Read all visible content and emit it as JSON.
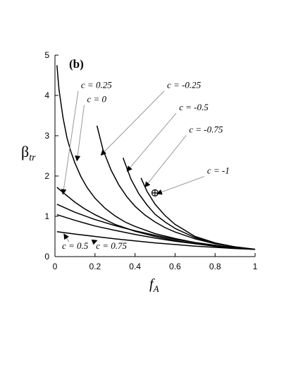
{
  "panel_label": "(b)",
  "chart_data": {
    "type": "line",
    "xlabel": "f",
    "xlabel_sub": "A",
    "ylabel": "β",
    "ylabel_sub": "tr",
    "xlim": [
      0,
      1
    ],
    "ylim": [
      0,
      5
    ],
    "xticks": [
      "0",
      "0.2",
      "0.4",
      "0.6",
      "0.8",
      "1"
    ],
    "yticks": [
      "0",
      "1",
      "2",
      "3",
      "4",
      "5"
    ],
    "grid": false,
    "series": [
      {
        "name": "c = -1",
        "x": [
          0.43,
          0.46,
          0.5,
          0.55,
          0.6,
          0.7,
          0.8,
          0.9,
          1.0
        ],
        "y": [
          1.95,
          1.62,
          1.3,
          1.02,
          0.8,
          0.5,
          0.34,
          0.24,
          0.18
        ]
      },
      {
        "name": "c = -0.75",
        "x": [
          0.34,
          0.38,
          0.42,
          0.46,
          0.5,
          0.55,
          0.6,
          0.7,
          0.8,
          0.9,
          1.0
        ],
        "y": [
          2.45,
          1.92,
          1.55,
          1.28,
          1.05,
          0.86,
          0.7,
          0.47,
          0.33,
          0.24,
          0.18
        ]
      },
      {
        "name": "c = -0.5",
        "x": [
          0.21,
          0.24,
          0.28,
          0.32,
          0.36,
          0.4,
          0.45,
          0.5,
          0.55,
          0.6,
          0.7,
          0.8,
          0.9,
          1.0
        ],
        "y": [
          3.25,
          2.65,
          2.15,
          1.77,
          1.48,
          1.25,
          1.03,
          0.86,
          0.72,
          0.61,
          0.44,
          0.32,
          0.24,
          0.18
        ]
      },
      {
        "name": "c = -0.25",
        "x": [
          0.01,
          0.02,
          0.04,
          0.06,
          0.08,
          0.1,
          0.13,
          0.16,
          0.2,
          0.25,
          0.3,
          0.35,
          0.4,
          0.5,
          0.6,
          0.7,
          0.8,
          0.9,
          1.0
        ],
        "y": [
          4.75,
          4.15,
          3.45,
          2.95,
          2.6,
          2.32,
          1.98,
          1.72,
          1.45,
          1.2,
          1.01,
          0.86,
          0.75,
          0.57,
          0.45,
          0.35,
          0.28,
          0.22,
          0.18
        ]
      },
      {
        "name": "c = 0",
        "x": [
          0.01,
          0.05,
          0.1,
          0.15,
          0.2,
          0.3,
          0.4,
          0.5,
          0.6,
          0.7,
          0.8,
          0.9,
          1.0
        ],
        "y": [
          1.72,
          1.55,
          1.35,
          1.18,
          1.04,
          0.8,
          0.63,
          0.5,
          0.4,
          0.32,
          0.26,
          0.21,
          0.18
        ]
      },
      {
        "name": "c = 0.25",
        "x": [
          0.01,
          0.1,
          0.2,
          0.3,
          0.4,
          0.5,
          0.6,
          0.7,
          0.8,
          0.9,
          1.0
        ],
        "y": [
          1.3,
          1.1,
          0.92,
          0.77,
          0.64,
          0.53,
          0.43,
          0.35,
          0.28,
          0.22,
          0.18
        ]
      },
      {
        "name": "c = 0.5",
        "x": [
          0.01,
          0.1,
          0.2,
          0.3,
          0.4,
          0.5,
          0.6,
          0.7,
          0.8,
          0.9,
          1.0
        ],
        "y": [
          1.04,
          0.9,
          0.76,
          0.65,
          0.55,
          0.46,
          0.38,
          0.32,
          0.26,
          0.21,
          0.18
        ]
      },
      {
        "name": "c = 0.75",
        "x": [
          0.01,
          0.1,
          0.2,
          0.3,
          0.4,
          0.5,
          0.6,
          0.7,
          0.8,
          0.9,
          1.0
        ],
        "y": [
          0.62,
          0.56,
          0.5,
          0.44,
          0.39,
          0.34,
          0.3,
          0.26,
          0.23,
          0.2,
          0.18
        ]
      }
    ],
    "annotations": [
      {
        "label": "c = 0.25",
        "tx": 0.13,
        "ty": 4.18,
        "ax": 0.04,
        "ay": 1.55
      },
      {
        "label": "c = 0",
        "tx": 0.16,
        "ty": 3.83,
        "ax": 0.11,
        "ay": 2.38
      },
      {
        "label": "c = -0.25",
        "tx": 0.56,
        "ty": 4.18,
        "ax": 0.23,
        "ay": 2.52
      },
      {
        "label": "c = -0.5",
        "tx": 0.62,
        "ty": 3.63,
        "ax": 0.36,
        "ay": 2.12
      },
      {
        "label": "c = -0.75",
        "tx": 0.67,
        "ty": 3.08,
        "ax": 0.45,
        "ay": 1.73
      },
      {
        "label": "c = -1",
        "tx": 0.76,
        "ty": 2.06,
        "ax": 0.51,
        "ay": 1.56
      },
      {
        "label": "c = 0.5",
        "tx": 0.035,
        "ty": 0.19,
        "ax": 0.045,
        "ay": 0.56
      },
      {
        "label": "c = 0.75",
        "tx": 0.205,
        "ty": 0.19,
        "ax": 0.21,
        "ay": 0.4
      }
    ],
    "marker": {
      "symbol": "⊕",
      "x": 0.5,
      "y": 1.58
    }
  }
}
